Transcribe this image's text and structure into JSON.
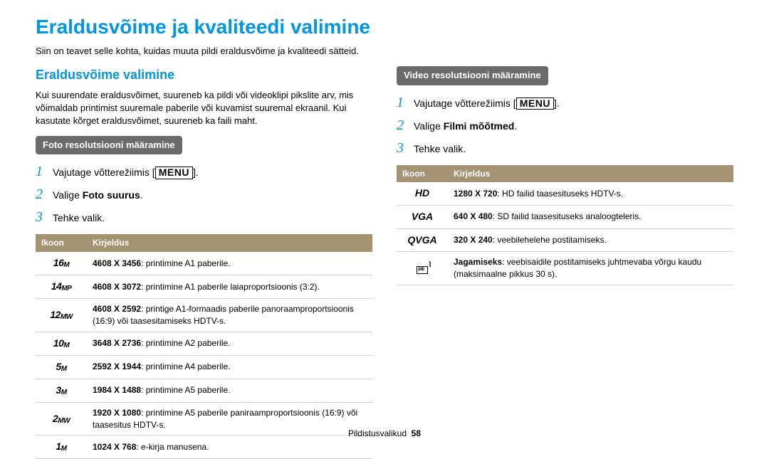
{
  "page": {
    "title": "Eraldusvõime ja kvaliteedi valimine",
    "subtitle": "Siin on teavet selle kohta, kuidas muuta pildi eraldusvõime ja kvaliteedi sätteid.",
    "footer": "Pildistusvalikud",
    "page_number": "58"
  },
  "left": {
    "heading": "Eraldusvõime valimine",
    "intro": "Kui suurendate eraldusvõimet, suureneb ka pildi või videoklipi pikslite arv, mis võimaldab printimist suuremale paberile või kuvamist suuremal ekraanil. Kui kasutate kõrget eraldusvõimet, suureneb ka faili maht.",
    "pill": "Foto resolutsiooni määramine",
    "step1_pre": "Vajutage võtterežiimis [",
    "step1_post": "].",
    "step2_pre": "Valige ",
    "step2_bold": "Foto suurus",
    "step2_post": ".",
    "step3": "Tehke valik.",
    "table": {
      "col_icon": "Ikoon",
      "col_desc": "Kirjeldus",
      "rows": [
        {
          "icon_main": "16",
          "icon_sub": "M",
          "bold": "4608 X 3456",
          "rest": ": printimine A1 paberile."
        },
        {
          "icon_main": "14",
          "icon_sub": "MP",
          "bold": "4608 X 3072",
          "rest": ": printimine A1 paberile laiaproportsioonis (3:2)."
        },
        {
          "icon_main": "12",
          "icon_sub": "MW",
          "bold": "4608 X 2592",
          "rest": ": printige A1-formaadis paberile panoraamproportsioonis (16:9) või taasesitamiseks HDTV-s."
        },
        {
          "icon_main": "10",
          "icon_sub": "M",
          "bold": "3648 X 2736",
          "rest": ": printimine A2 paberile."
        },
        {
          "icon_main": "5",
          "icon_sub": "M",
          "bold": "2592 X 1944",
          "rest": ": printimine A4 paberile."
        },
        {
          "icon_main": "3",
          "icon_sub": "M",
          "bold": "1984 X 1488",
          "rest": ": printimine A5 paberile."
        },
        {
          "icon_main": "2",
          "icon_sub": "MW",
          "bold": "1920 X 1080",
          "rest": ": printimine A5 paberile paniraamproportsioonis (16:9) või taasesitus HDTV-s."
        },
        {
          "icon_main": "1",
          "icon_sub": "M",
          "bold": "1024 X 768",
          "rest": ": e-kirja manusena."
        }
      ]
    }
  },
  "right": {
    "pill": "Video resolutsiooni määramine",
    "step1_pre": "Vajutage võtterežiimis [",
    "step1_post": "].",
    "step2_pre": "Valige ",
    "step2_bold": "Filmi mõõtmed",
    "step2_post": ".",
    "step3": "Tehke valik.",
    "table": {
      "col_icon": "Ikoon",
      "col_desc": "Kirjeldus",
      "rows": [
        {
          "icon_label": "HD",
          "bold": "1280 X 720",
          "rest": ": HD failid taasesituseks HDTV-s."
        },
        {
          "icon_label": "VGA",
          "bold": "640 X 480",
          "rest": ": SD failid taasesituseks analoogteleris."
        },
        {
          "icon_label": "QVGA",
          "bold": "320 X 240",
          "rest": ": veebilehelehe postitamiseks."
        },
        {
          "icon_label": "SHARE",
          "bold": "Jagamiseks",
          "rest": ": veebisaidile postitamiseks juhtmevaba võrgu kaudu (maksimaalne pikkus 30 s)."
        }
      ]
    }
  },
  "menu_label": "MENU",
  "colors": {
    "accent": "#0096e6",
    "pill_bg": "#6b6b6b",
    "table_header": "#a49272",
    "border": "#cfcfcf"
  }
}
